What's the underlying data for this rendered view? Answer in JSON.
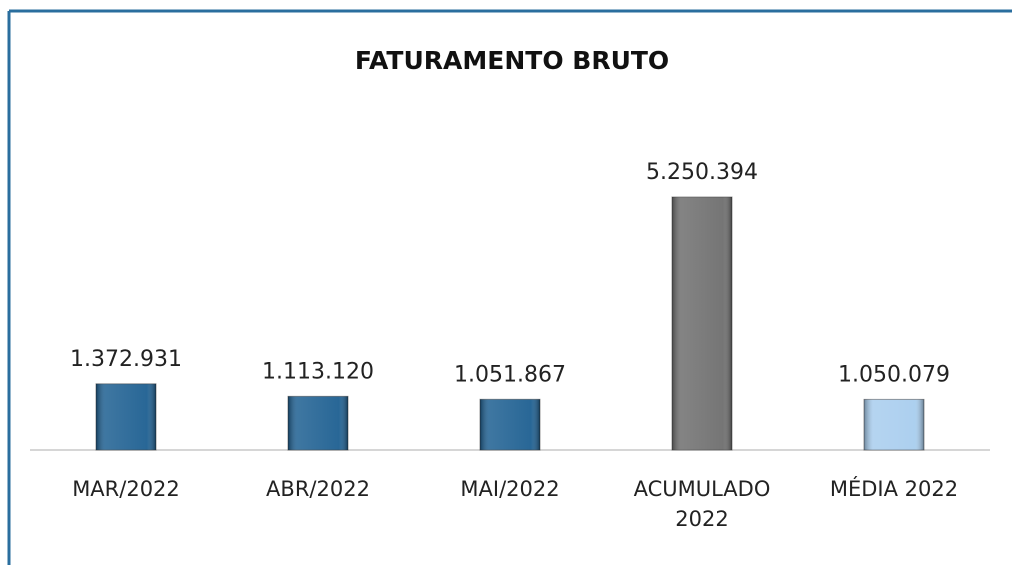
{
  "chart_data": {
    "type": "bar",
    "title": "FATURAMENTO BRUTO",
    "categories": [
      "MAR/2022",
      "ABR/2022",
      "MAI/2022",
      "ACUMULADO 2022",
      "MÉDIA 2022"
    ],
    "values": [
      1372931,
      1113120,
      1051867,
      5250394,
      1050079
    ],
    "value_labels": [
      "1.372.931",
      "1.113.120",
      "1.051.867",
      "5.250.394",
      "1.050.079"
    ],
    "colors": [
      "#1d5f91",
      "#1d5f91",
      "#1d5f91",
      "#6e6e6e",
      "#a8cdee"
    ]
  }
}
